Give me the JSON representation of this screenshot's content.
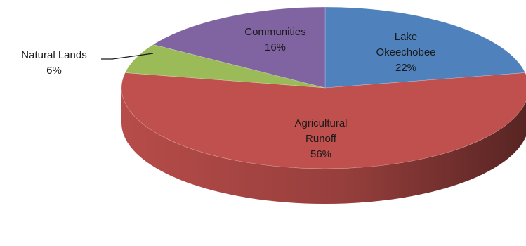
{
  "chart_data": {
    "type": "pie",
    "title": "",
    "style": "3d-tilted",
    "slices": [
      {
        "name": "Lake Okeechobee",
        "label_lines": [
          "Lake",
          "Okeechobee"
        ],
        "value": 22,
        "value_label": "22%",
        "color": "#4f81bd"
      },
      {
        "name": "Agricultural Runoff",
        "label_lines": [
          "Agricultural",
          "Runoff"
        ],
        "value": 56,
        "value_label": "56%",
        "color": "#c0504d"
      },
      {
        "name": "Natural Lands",
        "label_lines": [
          "Natural Lands"
        ],
        "value": 6,
        "value_label": "6%",
        "color": "#9bbb59"
      },
      {
        "name": "Communities",
        "label_lines": [
          "Communities"
        ],
        "value": 16,
        "value_label": "16%",
        "color": "#8064a2"
      }
    ]
  }
}
